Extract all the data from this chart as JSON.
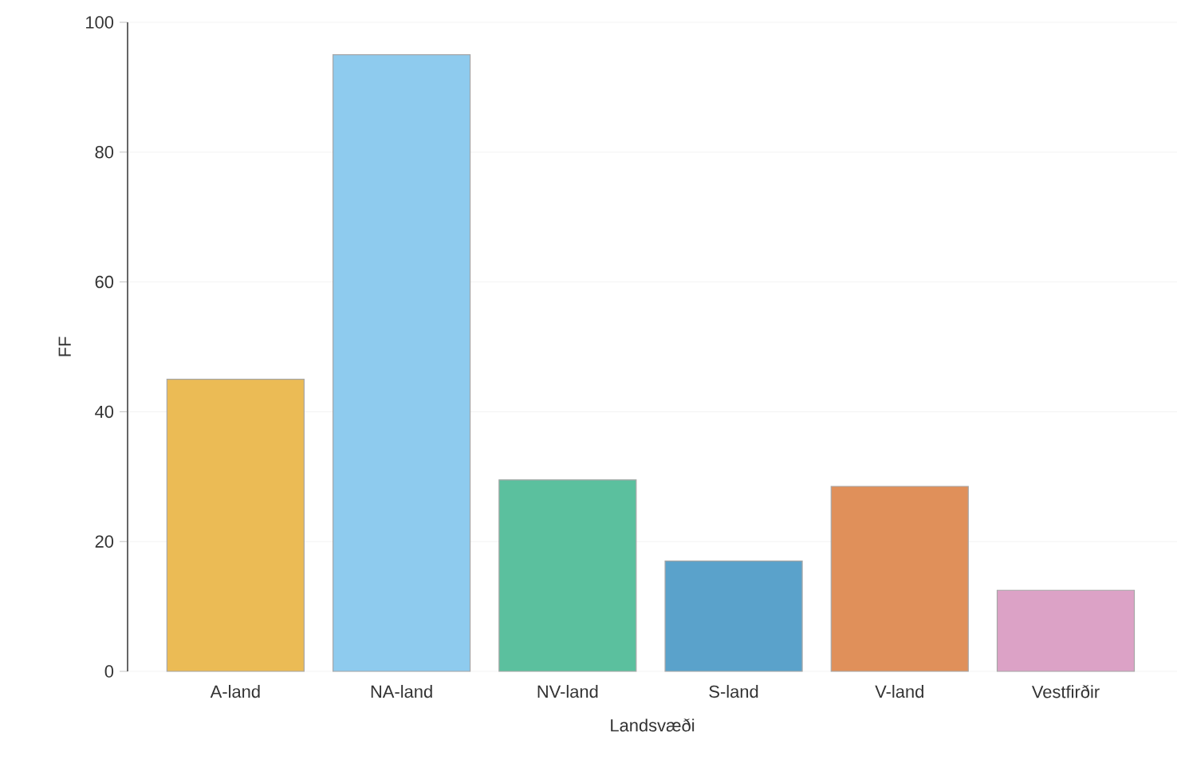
{
  "chart_data": {
    "type": "bar",
    "xlabel": "Landsvæði",
    "ylabel": "FF",
    "categories": [
      "A-land",
      "NA-land",
      "NV-land",
      "S-land",
      "V-land",
      "Vestfirðir"
    ],
    "values": [
      45,
      95,
      29.5,
      17,
      28.5,
      12.5
    ],
    "colors": [
      "#ebbb55",
      "#8ecbee",
      "#5bc09e",
      "#5aa2cb",
      "#e0905a",
      "#dca2c6"
    ],
    "ylim": [
      0,
      100
    ],
    "yticks": [
      0,
      20,
      40,
      60,
      80,
      100
    ],
    "grid": "y"
  }
}
